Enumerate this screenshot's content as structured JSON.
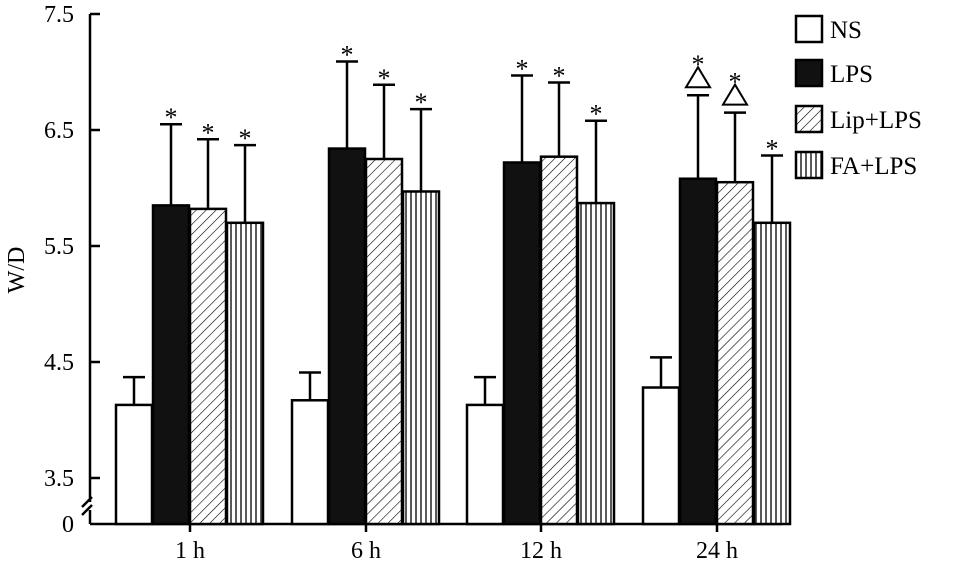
{
  "chart_data": {
    "type": "bar",
    "ylabel": "W/D",
    "y_ticks": [
      "7.5",
      "6.5",
      "5.5",
      "4.5",
      "3.5"
    ],
    "y_zero_label": "0",
    "y_axis_break": true,
    "ylim": [
      3.5,
      7.5
    ],
    "categories": [
      "1 h",
      "6 h",
      "12 h",
      "24 h"
    ],
    "legend_position": "top-right",
    "series": [
      {
        "name": "NS",
        "pattern": "white",
        "values": [
          4.13,
          4.17,
          4.13,
          4.28
        ],
        "errors": [
          0.24,
          0.24,
          0.24,
          0.26
        ],
        "markers": [
          "",
          "",
          "",
          ""
        ]
      },
      {
        "name": "LPS",
        "pattern": "black",
        "values": [
          5.85,
          6.34,
          6.22,
          6.08
        ],
        "errors": [
          0.7,
          0.75,
          0.75,
          0.72
        ],
        "markers": [
          "*",
          "*",
          "*",
          "*△"
        ]
      },
      {
        "name": "Lip+LPS",
        "pattern": "diagonal",
        "values": [
          5.82,
          6.25,
          6.27,
          6.05
        ],
        "errors": [
          0.6,
          0.64,
          0.64,
          0.6
        ],
        "markers": [
          "*",
          "*",
          "*",
          "*△"
        ]
      },
      {
        "name": "FA+LPS",
        "pattern": "vertical",
        "values": [
          5.7,
          5.97,
          5.87,
          5.7
        ],
        "errors": [
          0.67,
          0.71,
          0.71,
          0.58
        ],
        "markers": [
          "*",
          "*",
          "*",
          "*"
        ]
      }
    ],
    "colors": {
      "ns": "#ffffff",
      "lps": "#111111",
      "line": "#000000"
    }
  }
}
